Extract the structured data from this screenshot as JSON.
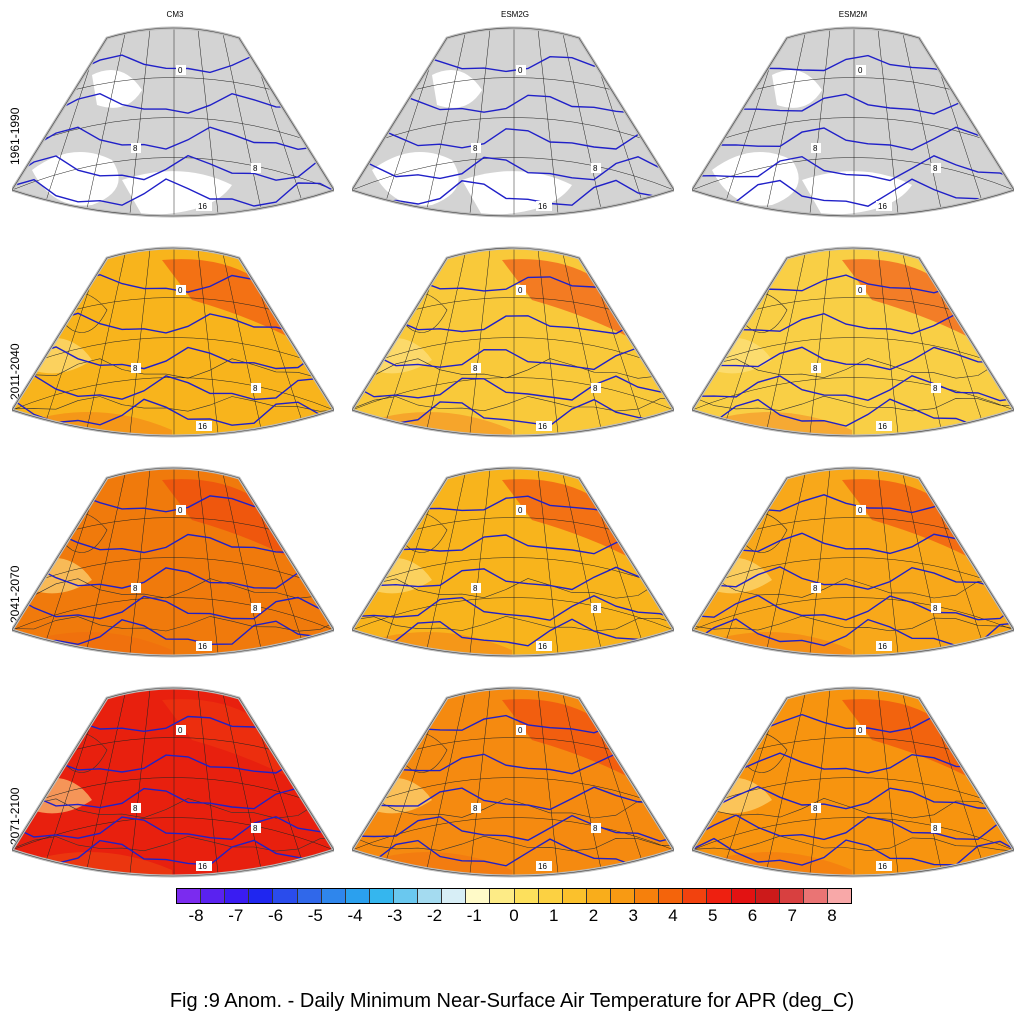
{
  "columns": [
    "CM3",
    "ESM2G",
    "ESM2M"
  ],
  "rows": [
    "1961-1990",
    "2011-2040",
    "2041-2070",
    "2071-2100"
  ],
  "contour_labels": {
    "zero": "0",
    "eight": "8",
    "sixteen": "16"
  },
  "panel_fill": [
    [
      "#d3d3d3",
      "#d3d3d3",
      "#d3d3d3"
    ],
    [
      "#f8b41c",
      "#f9c93a",
      "#f9cf45"
    ],
    [
      "#f07a0c",
      "#f8b41c",
      "#f8a81a"
    ],
    [
      "#e8200e",
      "#f58a10",
      "#f7940f"
    ]
  ],
  "colorbar": {
    "ticks": [
      "-8",
      "-7",
      "-6",
      "-5",
      "-4",
      "-3",
      "-2",
      "-1",
      "0",
      "1",
      "2",
      "3",
      "4",
      "5",
      "6",
      "7",
      "8"
    ],
    "colors": [
      "#7b2bef",
      "#5a22f0",
      "#3a1cf2",
      "#1f26f0",
      "#2a4cec",
      "#3068ea",
      "#2f86ec",
      "#2ba0ee",
      "#35b6ee",
      "#6ac8ef",
      "#a4dbf0",
      "#d7eef6",
      "#fffac8",
      "#fdeb86",
      "#fde05c",
      "#fcd142",
      "#fbc12c",
      "#f9ad1b",
      "#f89a13",
      "#f6800c",
      "#f4640b",
      "#f2420e",
      "#ee2010",
      "#e21212",
      "#cc1a1a",
      "#d84040",
      "#ea7474",
      "#f8a8a8"
    ]
  },
  "caption": "Fig :9  Anom.  - Daily Minimum Near-Surface Air Temperature for APR (deg_C)"
}
